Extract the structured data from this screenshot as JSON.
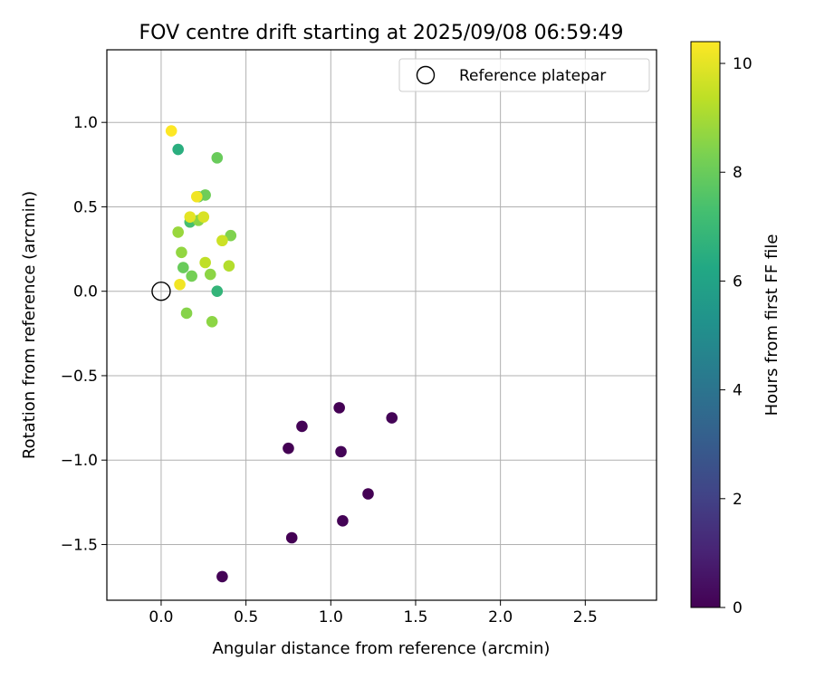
{
  "chart_data": {
    "type": "scatter",
    "title": "FOV centre drift starting at 2025/09/08 06:59:49",
    "xlabel": "Angular distance from reference (arcmin)",
    "ylabel": "Rotation from reference (arcmin)",
    "xlim": [
      -0.32,
      2.92
    ],
    "ylim": [
      -1.83,
      1.43
    ],
    "xticks": [
      0.0,
      0.5,
      1.0,
      1.5,
      2.0,
      2.5
    ],
    "xtick_labels": [
      "0.0",
      "0.5",
      "1.0",
      "1.5",
      "2.0",
      "2.5"
    ],
    "yticks": [
      -1.5,
      -1.0,
      -0.5,
      0.0,
      0.5,
      1.0
    ],
    "ytick_labels": [
      "−1.5",
      "−1.0",
      "−0.5",
      "0.0",
      "0.5",
      "1.0"
    ],
    "grid": true,
    "legend": {
      "position": "upper-right",
      "entries": [
        "Reference platepar"
      ]
    },
    "reference_point": {
      "x": 0.0,
      "y": 0.0,
      "label": "Reference platepar"
    },
    "colorbar": {
      "label": "Hours from first FF file",
      "min": 0,
      "max": 10.4,
      "ticks": [
        0,
        2,
        4,
        6,
        8,
        10
      ],
      "tick_labels": [
        "0",
        "2",
        "4",
        "6",
        "8",
        "10"
      ],
      "colormap": "viridis"
    },
    "points": [
      {
        "x": 1.05,
        "y": -0.69,
        "c": 0.0
      },
      {
        "x": 1.36,
        "y": -0.75,
        "c": 0.1
      },
      {
        "x": 0.83,
        "y": -0.8,
        "c": 0.05
      },
      {
        "x": 0.75,
        "y": -0.93,
        "c": 0.0
      },
      {
        "x": 1.06,
        "y": -0.95,
        "c": 0.1
      },
      {
        "x": 1.22,
        "y": -1.2,
        "c": 0.0
      },
      {
        "x": 1.07,
        "y": -1.36,
        "c": 0.05
      },
      {
        "x": 0.77,
        "y": -1.46,
        "c": 0.0
      },
      {
        "x": 0.36,
        "y": -1.69,
        "c": 0.05
      },
      {
        "x": 0.1,
        "y": 0.84,
        "c": 6.5
      },
      {
        "x": 0.33,
        "y": 0.0,
        "c": 6.8
      },
      {
        "x": 0.17,
        "y": 0.41,
        "c": 7.3
      },
      {
        "x": 0.33,
        "y": 0.79,
        "c": 8.0
      },
      {
        "x": 0.26,
        "y": 0.57,
        "c": 8.1
      },
      {
        "x": 0.22,
        "y": 0.56,
        "c": 8.0
      },
      {
        "x": 0.13,
        "y": 0.14,
        "c": 8.0
      },
      {
        "x": 0.18,
        "y": 0.09,
        "c": 8.2
      },
      {
        "x": 0.12,
        "y": 0.23,
        "c": 8.7
      },
      {
        "x": 0.1,
        "y": 0.35,
        "c": 8.8
      },
      {
        "x": 0.22,
        "y": 0.42,
        "c": 8.6
      },
      {
        "x": 0.41,
        "y": 0.33,
        "c": 8.4
      },
      {
        "x": 0.29,
        "y": 0.1,
        "c": 8.6
      },
      {
        "x": 0.15,
        "y": -0.13,
        "c": 8.5
      },
      {
        "x": 0.3,
        "y": -0.18,
        "c": 8.6
      },
      {
        "x": 0.4,
        "y": 0.15,
        "c": 9.2
      },
      {
        "x": 0.26,
        "y": 0.17,
        "c": 9.4
      },
      {
        "x": 0.36,
        "y": 0.3,
        "c": 9.6
      },
      {
        "x": 0.25,
        "y": 0.44,
        "c": 9.8
      },
      {
        "x": 0.17,
        "y": 0.44,
        "c": 10.0
      },
      {
        "x": 0.21,
        "y": 0.56,
        "c": 10.2
      },
      {
        "x": 0.11,
        "y": 0.04,
        "c": 10.2
      },
      {
        "x": 0.06,
        "y": 0.95,
        "c": 10.4
      }
    ]
  }
}
